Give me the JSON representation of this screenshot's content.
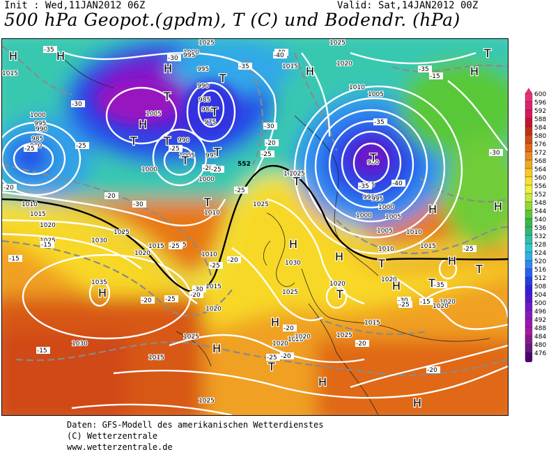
{
  "header": {
    "init": "Init : Wed,11JAN2012 06Z",
    "valid": "Valid: Sat,14JAN2012 00Z",
    "title": "500 hPa Geopot.(gpdm), T (C) und Bodendr. (hPa)"
  },
  "legend": {
    "labels": [
      "600",
      "596",
      "592",
      "588",
      "584",
      "580",
      "576",
      "572",
      "568",
      "564",
      "560",
      "556",
      "552",
      "548",
      "544",
      "540",
      "536",
      "532",
      "528",
      "524",
      "520",
      "516",
      "512",
      "508",
      "504",
      "500",
      "496",
      "492",
      "488",
      "484",
      "480",
      "476"
    ],
    "colors": [
      "#e8307a",
      "#e0206a",
      "#d81858",
      "#c81030",
      "#c03018",
      "#d04a18",
      "#e06818",
      "#e88a20",
      "#f0aa20",
      "#f8c828",
      "#f8e030",
      "#f0f040",
      "#c8e840",
      "#90d838",
      "#58c838",
      "#38b848",
      "#30b878",
      "#30c0a8",
      "#30c8d0",
      "#30b0e8",
      "#3088f0",
      "#2860f0",
      "#2040e0",
      "#3020d8",
      "#5018d0",
      "#7018c8",
      "#8818c0",
      "#9818b0",
      "#a818a0",
      "#881890",
      "#681880",
      "#500070"
    ]
  },
  "map": {
    "pressure_labels": [
      "1025",
      "1025",
      "1020",
      "1015",
      "1015",
      "1010",
      "1005",
      "1000",
      "995",
      "990",
      "985",
      "980",
      "975",
      "1000",
      "995",
      "990",
      "985",
      "980",
      "1000",
      "995",
      "1005",
      "1010",
      "1015",
      "1020",
      "1025",
      "1030",
      "1035",
      "1030",
      "1025",
      "1020",
      "1015",
      "1010",
      "1005",
      "1000",
      "995",
      "990",
      "1005",
      "1010",
      "1015",
      "1020",
      "1025",
      "1030",
      "1025",
      "1020",
      "1020",
      "1015",
      "1010",
      "1005",
      "1000",
      "995",
      "985",
      "980",
      "995",
      "1000",
      "1005",
      "1010",
      "1015",
      "1020",
      "1025",
      "1020",
      "1020",
      "1025",
      "1025",
      "1025",
      "1020",
      "1020",
      "1025",
      "1015"
    ],
    "temp_labels": [
      "-35",
      "-40",
      "-35",
      "-40",
      "-30",
      "-35",
      "-25",
      "-25",
      "-20",
      "-30",
      "-25",
      "-20",
      "-20",
      "-15",
      "-15",
      "-25",
      "-25",
      "-20",
      "-30",
      "-25",
      "-20",
      "-25",
      "-20",
      "-15",
      "-35",
      "-40",
      "-35",
      "-30",
      "-25",
      "-30",
      "-25",
      "-20",
      "-25",
      "-20",
      "-20",
      "-20",
      "-25",
      "-35",
      "-30",
      "-25",
      "-30",
      "-20",
      "-15",
      "-15"
    ],
    "highs": [
      "H",
      "H",
      "H",
      "H",
      "H",
      "H",
      "H",
      "H",
      "H",
      "H",
      "H",
      "H",
      "H",
      "H",
      "H",
      "H",
      "H"
    ],
    "lows": [
      "T",
      "T",
      "T",
      "T",
      "T",
      "T",
      "T",
      "T",
      "T",
      "T",
      "T",
      "T",
      "T",
      "T",
      "T",
      "T"
    ],
    "contour_552": "552"
  },
  "footer": {
    "line1": "Daten: GFS-Modell des amerikanischen Wetterdienstes",
    "line2": "(C) Wetterzentrale",
    "line3": "www.wetterzentrale.de"
  }
}
